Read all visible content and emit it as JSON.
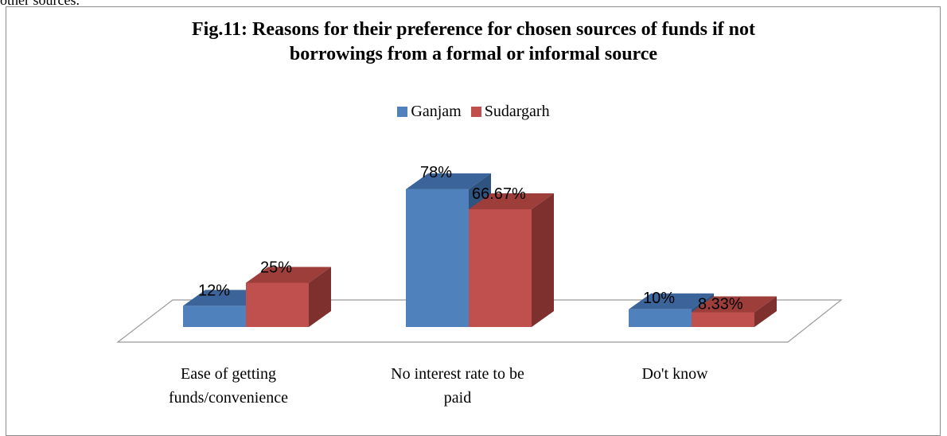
{
  "page": {
    "snippet_text": "other sources."
  },
  "chart_data": {
    "type": "bar",
    "title_line1": "Fig.11: Reasons for their preference for chosen sources of funds if not",
    "title_line2": "borrowings from a formal or informal source",
    "categories": [
      [
        "Ease of getting",
        "funds/convenience"
      ],
      [
        "No interest rate to be",
        "paid"
      ],
      [
        "Do't know"
      ]
    ],
    "series": [
      {
        "name": "Ganjam",
        "values": [
          12,
          78,
          10
        ],
        "labels": [
          "12%",
          "78%",
          "10%"
        ],
        "color": "#4F81BD",
        "top_color": "#3B659A",
        "side_color": "#2F5480"
      },
      {
        "name": "Sudargarh",
        "values": [
          25,
          66.67,
          8.33
        ],
        "labels": [
          "25%",
          "66.67%",
          "8.33%"
        ],
        "color": "#C0504D",
        "top_color": "#9E3E3B",
        "side_color": "#7E302E"
      }
    ],
    "ylim": [
      0,
      100
    ],
    "legend_position": "top",
    "grid": false
  }
}
